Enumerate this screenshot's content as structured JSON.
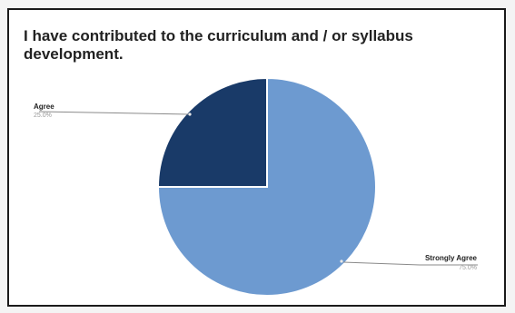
{
  "chart_data": {
    "type": "pie",
    "title": "I have contributed to the curriculum and / or syllabus development.",
    "slices": [
      {
        "label": "Agree",
        "value_text": "25.0%",
        "value": 25.0,
        "color": "#193a68"
      },
      {
        "label": "Strongly Agree",
        "value_text": "75.0%",
        "value": 75.0,
        "color": "#6d9ad0"
      }
    ],
    "legend": "callout labels"
  }
}
